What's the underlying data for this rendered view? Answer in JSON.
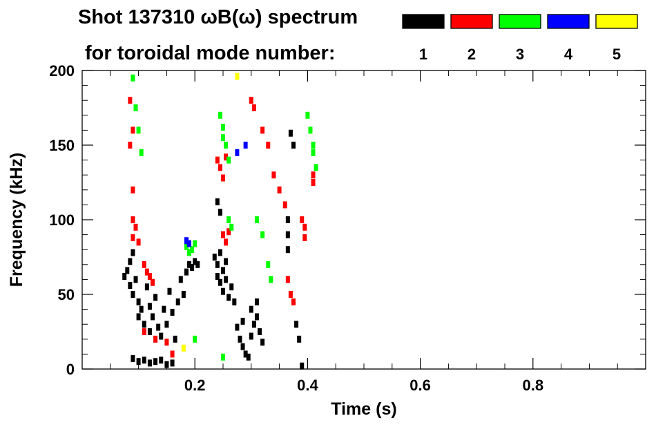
{
  "chart_data": {
    "type": "scatter",
    "title_line1": "Shot 137310 ωB(ω) spectrum",
    "title_line2": "for toroidal mode number:",
    "xlabel": "Time (s)",
    "ylabel": "Frequency (kHz)",
    "xlim": [
      0.0,
      1.0
    ],
    "ylim": [
      0,
      200
    ],
    "x_ticks": [
      "0.2",
      "0.4",
      "0.6",
      "0.8"
    ],
    "y_ticks": [
      "0",
      "50",
      "100",
      "150",
      "200"
    ],
    "grid": false,
    "legend": {
      "placement": "top-right",
      "entries": [
        {
          "label": "1",
          "color": "#000000"
        },
        {
          "label": "2",
          "color": "#ff0000"
        },
        {
          "label": "3",
          "color": "#00ff00"
        },
        {
          "label": "4",
          "color": "#0000ff"
        },
        {
          "label": "5",
          "color": "#ffff00"
        }
      ]
    },
    "series": [
      {
        "name": "1",
        "color": "#000000",
        "points": [
          [
            0.075,
            62
          ],
          [
            0.08,
            66
          ],
          [
            0.085,
            72
          ],
          [
            0.09,
            78
          ],
          [
            0.085,
            56
          ],
          [
            0.09,
            50
          ],
          [
            0.095,
            60
          ],
          [
            0.1,
            45
          ],
          [
            0.1,
            35
          ],
          [
            0.105,
            40
          ],
          [
            0.11,
            30
          ],
          [
            0.115,
            55
          ],
          [
            0.12,
            42
          ],
          [
            0.12,
            25
          ],
          [
            0.125,
            35
          ],
          [
            0.13,
            48
          ],
          [
            0.135,
            28
          ],
          [
            0.14,
            22
          ],
          [
            0.145,
            40
          ],
          [
            0.15,
            30
          ],
          [
            0.155,
            52
          ],
          [
            0.16,
            38
          ],
          [
            0.165,
            20
          ],
          [
            0.17,
            45
          ],
          [
            0.175,
            60
          ],
          [
            0.18,
            50
          ],
          [
            0.185,
            65
          ],
          [
            0.19,
            70
          ],
          [
            0.195,
            68
          ],
          [
            0.2,
            72
          ],
          [
            0.205,
            70
          ],
          [
            0.09,
            7
          ],
          [
            0.1,
            5
          ],
          [
            0.11,
            6
          ],
          [
            0.12,
            4
          ],
          [
            0.13,
            5
          ],
          [
            0.14,
            6
          ],
          [
            0.15,
            3
          ],
          [
            0.16,
            4
          ],
          [
            0.235,
            75
          ],
          [
            0.24,
            70
          ],
          [
            0.24,
            62
          ],
          [
            0.245,
            58
          ],
          [
            0.25,
            66
          ],
          [
            0.25,
            52
          ],
          [
            0.255,
            60
          ],
          [
            0.26,
            48
          ],
          [
            0.265,
            55
          ],
          [
            0.27,
            45
          ],
          [
            0.245,
            78
          ],
          [
            0.255,
            72
          ],
          [
            0.24,
            112
          ],
          [
            0.245,
            105
          ],
          [
            0.275,
            28
          ],
          [
            0.28,
            20
          ],
          [
            0.285,
            15
          ],
          [
            0.29,
            10
          ],
          [
            0.295,
            8
          ],
          [
            0.3,
            22
          ],
          [
            0.305,
            30
          ],
          [
            0.31,
            35
          ],
          [
            0.315,
            25
          ],
          [
            0.32,
            18
          ],
          [
            0.3,
            40
          ],
          [
            0.31,
            45
          ],
          [
            0.285,
            32
          ],
          [
            0.37,
            158
          ],
          [
            0.375,
            150
          ],
          [
            0.365,
            100
          ],
          [
            0.365,
            90
          ],
          [
            0.365,
            80
          ],
          [
            0.38,
            30
          ],
          [
            0.385,
            20
          ],
          [
            0.39,
            2
          ]
        ]
      },
      {
        "name": "2",
        "color": "#ff0000",
        "points": [
          [
            0.085,
            180
          ],
          [
            0.09,
            160
          ],
          [
            0.085,
            150
          ],
          [
            0.09,
            120
          ],
          [
            0.09,
            100
          ],
          [
            0.095,
            95
          ],
          [
            0.1,
            85
          ],
          [
            0.11,
            70
          ],
          [
            0.115,
            65
          ],
          [
            0.12,
            62
          ],
          [
            0.125,
            58
          ],
          [
            0.09,
            88
          ],
          [
            0.11,
            25
          ],
          [
            0.13,
            20
          ],
          [
            0.15,
            18
          ],
          [
            0.16,
            10
          ],
          [
            0.24,
            140
          ],
          [
            0.245,
            135
          ],
          [
            0.25,
            128
          ],
          [
            0.255,
            142
          ],
          [
            0.25,
            90
          ],
          [
            0.255,
            85
          ],
          [
            0.26,
            92
          ],
          [
            0.3,
            180
          ],
          [
            0.305,
            175
          ],
          [
            0.32,
            160
          ],
          [
            0.33,
            150
          ],
          [
            0.34,
            130
          ],
          [
            0.35,
            120
          ],
          [
            0.36,
            110
          ],
          [
            0.365,
            60
          ],
          [
            0.37,
            50
          ],
          [
            0.375,
            45
          ],
          [
            0.39,
            100
          ],
          [
            0.395,
            95
          ],
          [
            0.395,
            88
          ],
          [
            0.41,
            130
          ],
          [
            0.41,
            125
          ]
        ]
      },
      {
        "name": "3",
        "color": "#00ff00",
        "points": [
          [
            0.09,
            195
          ],
          [
            0.095,
            175
          ],
          [
            0.1,
            160
          ],
          [
            0.105,
            145
          ],
          [
            0.185,
            82
          ],
          [
            0.19,
            78
          ],
          [
            0.195,
            80
          ],
          [
            0.2,
            84
          ],
          [
            0.245,
            170
          ],
          [
            0.25,
            162
          ],
          [
            0.255,
            150
          ],
          [
            0.25,
            155
          ],
          [
            0.26,
            140
          ],
          [
            0.26,
            100
          ],
          [
            0.265,
            95
          ],
          [
            0.31,
            100
          ],
          [
            0.32,
            90
          ],
          [
            0.33,
            70
          ],
          [
            0.335,
            60
          ],
          [
            0.2,
            20
          ],
          [
            0.25,
            8
          ],
          [
            0.4,
            170
          ],
          [
            0.405,
            160
          ],
          [
            0.41,
            145
          ],
          [
            0.415,
            135
          ],
          [
            0.41,
            150
          ]
        ]
      },
      {
        "name": "4",
        "color": "#0000ff",
        "points": [
          [
            0.185,
            86
          ],
          [
            0.19,
            84
          ],
          [
            0.29,
            150
          ],
          [
            0.275,
            145
          ]
        ]
      },
      {
        "name": "5",
        "color": "#ffff00",
        "points": [
          [
            0.18,
            14
          ],
          [
            0.275,
            196
          ]
        ]
      }
    ]
  }
}
